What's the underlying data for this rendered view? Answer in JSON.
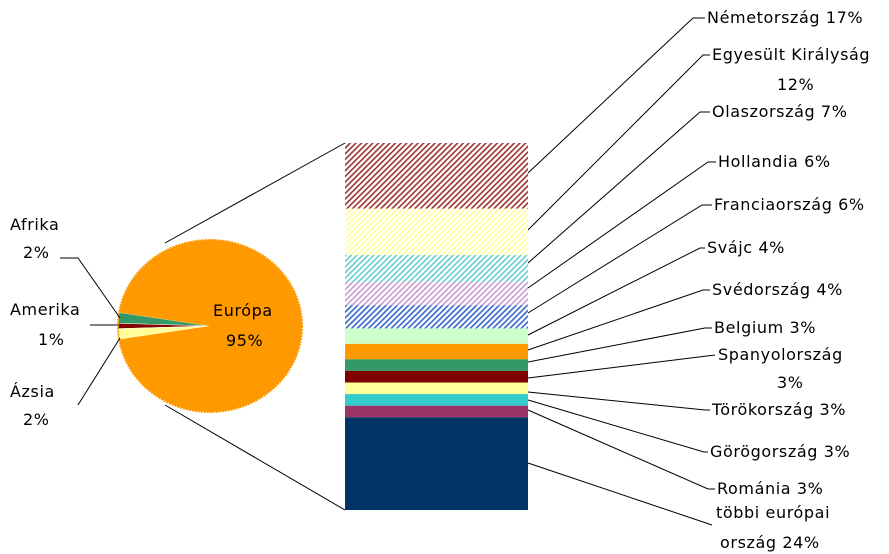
{
  "chart_data": [
    {
      "type": "pie",
      "title": "",
      "slices": [
        {
          "label": "Európa",
          "percent_text": "95%",
          "value": 95,
          "color": "#ff9900"
        },
        {
          "label": "Afrika",
          "percent_text": "2%",
          "value": 2,
          "color": "#339966"
        },
        {
          "label": "Amerika",
          "percent_text": "1%",
          "value": 1,
          "color": "#800000"
        },
        {
          "label": "Ázsia",
          "percent_text": "2%",
          "value": 2,
          "color": "#ffff99"
        }
      ]
    },
    {
      "type": "bar",
      "stacked": true,
      "title": "",
      "categories": [
        "Németország 17%",
        "Egyesült Királyság 12%",
        "Olaszország 7%",
        "Hollandia 6%",
        "Franciaország 6%",
        "Svájc 4%",
        "Svédország 4%",
        "Belgium 3%",
        "Spanyolország 3%",
        "Törökország 3%",
        "Görögország 3%",
        "Románia 3%",
        "többi európai ország 24%"
      ],
      "values": [
        17,
        12,
        7,
        6,
        6,
        4,
        4,
        3,
        3,
        3,
        3,
        3,
        24
      ],
      "colors": [
        "#993333",
        "#ffff99",
        "#66cccc",
        "#cc99cc",
        "#3366cc",
        "#ccffcc",
        "#ff9900",
        "#339966",
        "#800000",
        "#ffff99",
        "#33cccc",
        "#993366",
        "#003366"
      ],
      "patterns": [
        "hatch",
        "hatch",
        "hatch",
        "hatch",
        "hatch",
        "solid",
        "solid",
        "solid",
        "solid",
        "solid",
        "solid",
        "solid",
        "solid"
      ]
    }
  ],
  "labels": {
    "afrika_name": "Afrika",
    "afrika_pct": "2%",
    "amerika_name": "Amerika",
    "amerika_pct": "1%",
    "azsia_name": "Ázsia",
    "azsia_pct": "2%",
    "europa_name": "Európa",
    "europa_pct": "95%",
    "nemetorszag": "Németország 17%",
    "egyesult_line1": "Egyesült Királyság",
    "egyesult_line2": "12%",
    "olaszorszag": "Olaszország 7%",
    "hollandia": "Hollandia 6%",
    "franciaorszag": "Franciaország 6%",
    "svajc": "Svájc 4%",
    "svedorszag": "Svédország 4%",
    "belgium": "Belgium 3%",
    "spanyol_line1": "Spanyolország",
    "spanyol_line2": "3%",
    "torokorszag": "Törökország 3%",
    "gorogorszag": "Görögország 3%",
    "romania": "Románia 3%",
    "tobbi_line1": "többi európai",
    "tobbi_line2": "ország 24%"
  }
}
